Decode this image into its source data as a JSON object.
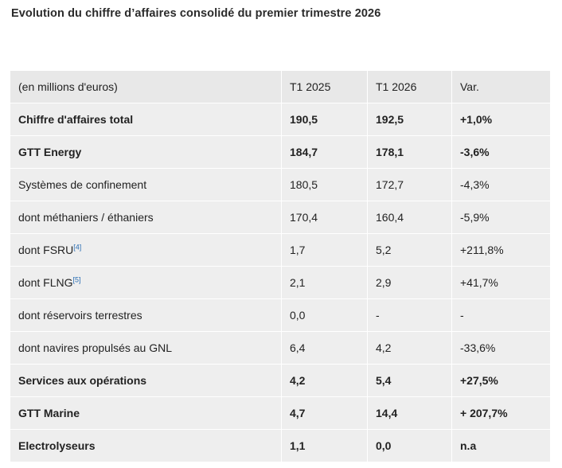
{
  "title": "Evolution du chiffre d’affaires consolidé du premier trimestre 2026",
  "table": {
    "headers": [
      "(en millions d'euros)",
      "T1 2025",
      "T1 2026",
      "Var."
    ],
    "rows": [
      {
        "label": "Chiffre d'affaires total",
        "t1_2025": "190,5",
        "t1_2026": "192,5",
        "var": "+1,0%",
        "bold": true,
        "highlighted": true
      },
      {
        "label": "GTT Energy",
        "t1_2025": "184,7",
        "t1_2026": "178,1",
        "var": "-3,6%",
        "bold": true
      },
      {
        "label": "Systèmes de confinement",
        "t1_2025": "180,5",
        "t1_2026": "172,7",
        "var": "-4,3%",
        "bold": false
      },
      {
        "label": "dont méthaniers / éthaniers",
        "t1_2025": "170,4",
        "t1_2026": "160,4",
        "var": "-5,9%",
        "bold": false
      },
      {
        "label": "dont FSRU",
        "footnote": "[4]",
        "t1_2025": "1,7",
        "t1_2026": "5,2",
        "var": "+211,8%",
        "bold": false
      },
      {
        "label": "dont FLNG",
        "footnote": "[5]",
        "t1_2025": "2,1",
        "t1_2026": "2,9",
        "var": "+41,7%",
        "bold": false
      },
      {
        "label": "dont réservoirs terrestres",
        "t1_2025": "0,0",
        "t1_2026": "-",
        "var": "-",
        "bold": false
      },
      {
        "label": "dont navires propulsés au GNL",
        "t1_2025": "6,4",
        "t1_2026": "4,2",
        "var": "-33,6%",
        "bold": false
      },
      {
        "label": "Services aux opérations",
        "t1_2025": "4,2",
        "t1_2026": "5,4",
        "var": "+27,5%",
        "bold": true
      },
      {
        "label": "GTT Marine",
        "t1_2025": "4,7",
        "t1_2026": "14,4",
        "var": "+ 207,7%",
        "bold": true
      },
      {
        "label": "Electrolyseurs",
        "t1_2025": "1,1",
        "t1_2026": "0,0",
        "var": "n.a",
        "bold": true
      }
    ]
  },
  "colors": {
    "cell_background": "#eeeeee",
    "highlighter": "#e6ee00",
    "footnote_link": "#2b6fb4"
  }
}
